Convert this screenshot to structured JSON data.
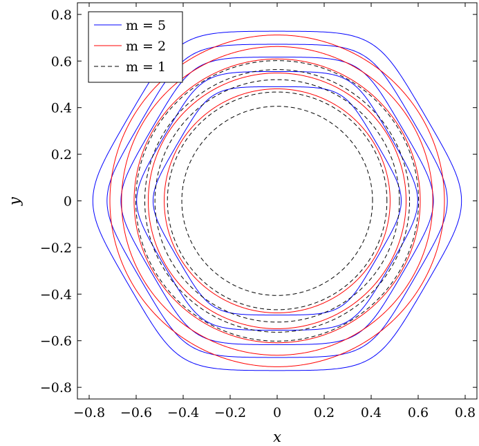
{
  "chart_data": {
    "type": "line",
    "xlabel": "x",
    "ylabel": "y",
    "xlim": [
      -0.85,
      0.85
    ],
    "ylim": [
      -0.85,
      0.85
    ],
    "grid": false,
    "legend_position": "top-left",
    "x_ticks": [
      -0.8,
      -0.6,
      -0.4,
      -0.2,
      0,
      0.2,
      0.4,
      0.6,
      0.8
    ],
    "y_ticks": [
      -0.8,
      -0.6,
      -0.4,
      -0.2,
      0,
      0.2,
      0.4,
      0.6,
      0.8
    ],
    "x_tick_labels": [
      "−0.8",
      "−0.6",
      "−0.4",
      "−0.2",
      "0",
      "0.2",
      "0.4",
      "0.6",
      "0.8"
    ],
    "y_tick_labels": [
      "−0.8",
      "−0.6",
      "−0.4",
      "−0.2",
      "0",
      "0.2",
      "0.4",
      "0.6",
      "0.8"
    ],
    "series": [
      {
        "name": "m = 5",
        "color": "#0000ff",
        "dash": "solid",
        "exponent": 10,
        "apothems": [
          0.49,
          0.555,
          0.617,
          0.672,
          0.728
        ]
      },
      {
        "name": "m = 2",
        "color": "#ff0000",
        "dash": "solid",
        "exponent": 4,
        "apothems": [
          0.495,
          0.565,
          0.627,
          0.682,
          0.733
        ]
      },
      {
        "name": "m = 1",
        "color": "#000000",
        "dash": "dashed",
        "exponent": 2,
        "apothems": [
          0.497,
          0.572,
          0.637,
          0.69,
          0.737
        ]
      }
    ]
  }
}
